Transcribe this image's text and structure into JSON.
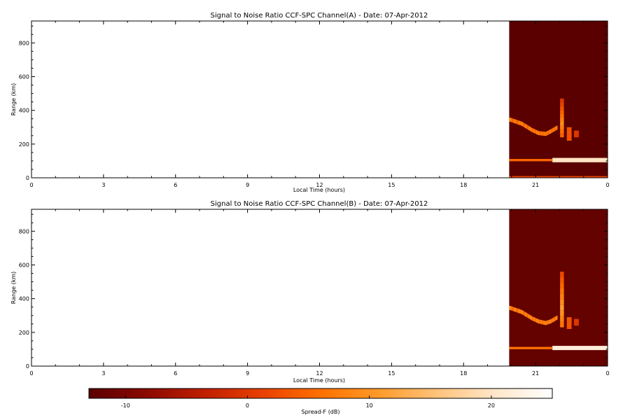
{
  "colorbar": {
    "label": "Spread-F (dB)",
    "range": [
      -13,
      25
    ],
    "ticks": [
      "-10",
      "0",
      "10",
      "20"
    ],
    "tick_values": [
      -10,
      0,
      10,
      20
    ],
    "colormap": [
      "#5a0000",
      "#8b0a00",
      "#c01f00",
      "#e84000",
      "#ff7000",
      "#ff9a2a",
      "#ffc27a",
      "#ffe6c8",
      "#ffffff"
    ]
  },
  "chart_data": [
    {
      "type": "heatmap",
      "title": "Signal to Noise Ratio CCF-SPC Channel(A) - Date: 07-Apr-2012",
      "xlabel": "Local Time (hours)",
      "ylabel": "Range (km)",
      "xlim": [
        0,
        24
      ],
      "ylim": [
        0,
        930
      ],
      "x_ticks": [
        "0",
        "3",
        "6",
        "9",
        "12",
        "15",
        "18",
        "21",
        "0"
      ],
      "x_tick_values": [
        0,
        3,
        6,
        9,
        12,
        15,
        18,
        21,
        24
      ],
      "y_ticks": [
        "0",
        "200",
        "400",
        "600",
        "800"
      ],
      "y_tick_values": [
        0,
        200,
        400,
        600,
        800
      ],
      "data_start_hour": 19.9,
      "background_db": -13,
      "features": [
        {
          "kind": "trace",
          "points": [
            [
              19.9,
              345
            ],
            [
              20.4,
              320
            ],
            [
              20.8,
              285
            ],
            [
              21.1,
              265
            ],
            [
              21.4,
              260
            ],
            [
              21.6,
              275
            ],
            [
              21.9,
              300
            ]
          ],
          "db": 8
        },
        {
          "kind": "spike",
          "x": 22.1,
          "range": [
            240,
            470
          ],
          "db": 9
        },
        {
          "kind": "patch",
          "x": 22.4,
          "range": [
            220,
            300
          ],
          "db": 3
        },
        {
          "kind": "patch",
          "x": 22.7,
          "range": [
            240,
            280
          ],
          "db": 0
        },
        {
          "kind": "band",
          "x": [
            21.7,
            24.0
          ],
          "range": [
            92,
            118
          ],
          "db": 20
        },
        {
          "kind": "band",
          "x": [
            19.9,
            21.7
          ],
          "range": [
            98,
            112
          ],
          "db": 5
        },
        {
          "kind": "band",
          "x": [
            19.9,
            24.0
          ],
          "range": [
            0,
            10
          ],
          "db": 2
        }
      ]
    },
    {
      "type": "heatmap",
      "title": "Signal to Noise Ratio CCF-SPC Channel(B) - Date: 07-Apr-2012",
      "xlabel": "Local Time (hours)",
      "ylabel": "Range (km)",
      "xlim": [
        0,
        24
      ],
      "ylim": [
        0,
        930
      ],
      "x_ticks": [
        "0",
        "3",
        "6",
        "9",
        "12",
        "15",
        "18",
        "21",
        "0"
      ],
      "x_tick_values": [
        0,
        3,
        6,
        9,
        12,
        15,
        18,
        21,
        24
      ],
      "y_ticks": [
        "0",
        "200",
        "400",
        "600",
        "800"
      ],
      "y_tick_values": [
        0,
        200,
        400,
        600,
        800
      ],
      "data_start_hour": 19.9,
      "background_db": -12,
      "features": [
        {
          "kind": "trace",
          "points": [
            [
              19.9,
              345
            ],
            [
              20.4,
              320
            ],
            [
              20.8,
              285
            ],
            [
              21.1,
              265
            ],
            [
              21.4,
              255
            ],
            [
              21.6,
              265
            ],
            [
              21.9,
              290
            ]
          ],
          "db": 9
        },
        {
          "kind": "spike",
          "x": 22.1,
          "range": [
            230,
            560
          ],
          "db": 11
        },
        {
          "kind": "patch",
          "x": 22.4,
          "range": [
            220,
            290
          ],
          "db": 3
        },
        {
          "kind": "patch",
          "x": 22.7,
          "range": [
            240,
            280
          ],
          "db": 0
        },
        {
          "kind": "band",
          "x": [
            21.7,
            24.0
          ],
          "range": [
            95,
            120
          ],
          "db": 22
        },
        {
          "kind": "band",
          "x": [
            19.9,
            21.7
          ],
          "range": [
            100,
            114
          ],
          "db": 6
        }
      ]
    }
  ]
}
